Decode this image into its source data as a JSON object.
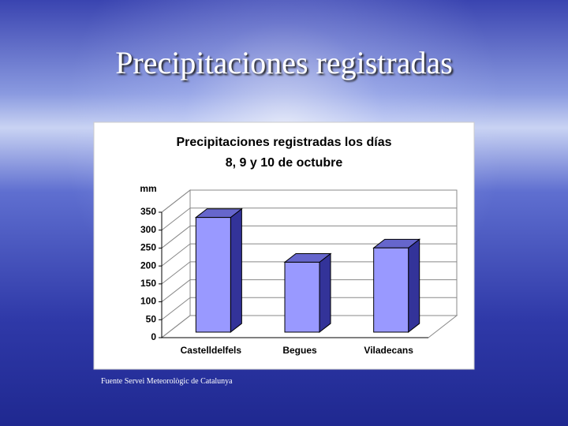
{
  "slide": {
    "title": "Precipitaciones registradas",
    "footnote": "Fuente Servei Meteorològic de Catalunya"
  },
  "chart_data": {
    "type": "bar3d",
    "title": [
      "Precipitaciones registradas los días",
      "8, 9 y 10 de octubre"
    ],
    "y_label": "mm",
    "categories": [
      "Castelldelfels",
      "Begues",
      "Viladecans"
    ],
    "values": [
      320,
      195,
      235
    ],
    "color": "#9999ff",
    "ylim": [
      0,
      350
    ],
    "yticks": [
      0,
      50,
      100,
      150,
      200,
      250,
      300,
      350
    ],
    "grid": true
  }
}
